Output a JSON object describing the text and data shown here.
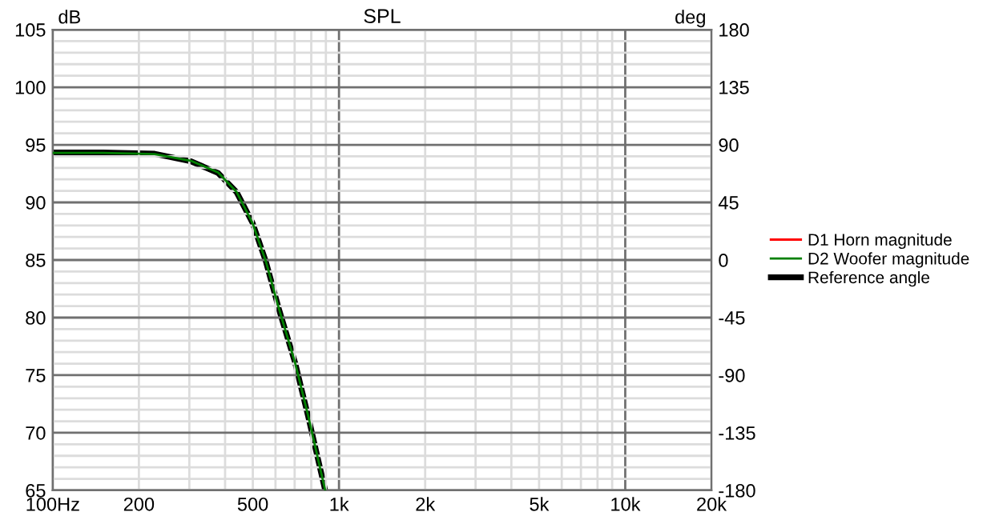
{
  "chart_data": {
    "type": "line",
    "title": "SPL",
    "ylabel": "dB",
    "y2label": "deg",
    "log": "x",
    "grid": true,
    "legend": "right",
    "line_style": "solid",
    "marker": "none",
    "xlim": [
      100,
      20000
    ],
    "ylim": [
      65,
      105
    ],
    "y2lim": [
      -180,
      180
    ],
    "xticks": [
      {
        "value": 100,
        "label": "100Hz"
      },
      {
        "value": 200,
        "label": "200"
      },
      {
        "value": 300,
        "label": null
      },
      {
        "value": 400,
        "label": null
      },
      {
        "value": 500,
        "label": "500"
      },
      {
        "value": 600,
        "label": null
      },
      {
        "value": 700,
        "label": null
      },
      {
        "value": 800,
        "label": null
      },
      {
        "value": 900,
        "label": null
      },
      {
        "value": 1000,
        "label": "1k"
      },
      {
        "value": 2000,
        "label": "2k"
      },
      {
        "value": 3000,
        "label": null
      },
      {
        "value": 4000,
        "label": null
      },
      {
        "value": 5000,
        "label": "5k"
      },
      {
        "value": 6000,
        "label": null
      },
      {
        "value": 7000,
        "label": null
      },
      {
        "value": 8000,
        "label": null
      },
      {
        "value": 9000,
        "label": null
      },
      {
        "value": 10000,
        "label": "10k"
      },
      {
        "value": 20000,
        "label": "20k"
      }
    ],
    "yticks": [
      65,
      {
        "value": 66,
        "label": null
      },
      {
        "value": 67,
        "label": null
      },
      {
        "value": 68,
        "label": null
      },
      {
        "value": 69,
        "label": null
      },
      70,
      {
        "value": 71,
        "label": null
      },
      {
        "value": 72,
        "label": null
      },
      {
        "value": 73,
        "label": null
      },
      {
        "value": 74,
        "label": null
      },
      75,
      {
        "value": 76,
        "label": null
      },
      {
        "value": 77,
        "label": null
      },
      {
        "value": 78,
        "label": null
      },
      {
        "value": 79,
        "label": null
      },
      80,
      {
        "value": 81,
        "label": null
      },
      {
        "value": 82,
        "label": null
      },
      {
        "value": 83,
        "label": null
      },
      {
        "value": 84,
        "label": null
      },
      85,
      {
        "value": 86,
        "label": null
      },
      {
        "value": 87,
        "label": null
      },
      {
        "value": 88,
        "label": null
      },
      {
        "value": 89,
        "label": null
      },
      90,
      {
        "value": 91,
        "label": null
      },
      {
        "value": 92,
        "label": null
      },
      {
        "value": 93,
        "label": null
      },
      {
        "value": 94,
        "label": null
      },
      95,
      {
        "value": 96,
        "label": null
      },
      {
        "value": 97,
        "label": null
      },
      {
        "value": 98,
        "label": null
      },
      {
        "value": 99,
        "label": null
      },
      100,
      {
        "value": 101,
        "label": null
      },
      {
        "value": 102,
        "label": null
      },
      {
        "value": 103,
        "label": null
      },
      {
        "value": 104,
        "label": null
      },
      105
    ],
    "y2ticks": [
      -180,
      -135,
      -90,
      -45,
      0,
      45,
      90,
      135,
      180
    ],
    "series": [
      {
        "name": "Reference angle",
        "color": "#000000",
        "axis": "y2",
        "x": [
          100,
          150,
          227,
          305,
          378,
          439,
          499,
          555,
          618,
          702,
          780,
          895
        ],
        "values": [
          84,
          84,
          83,
          77,
          68,
          53,
          29,
          -1,
          -39,
          -80,
          -122,
          -180
        ]
      },
      {
        "name": "D1 Horn magnitude",
        "color": "#ff0000"
      },
      {
        "name": "D2 Woofer magnitude",
        "color": "#008000",
        "x": [
          100,
          150,
          227,
          305,
          378,
          439,
          499,
          555,
          618,
          702,
          780,
          895
        ],
        "values": [
          94.3,
          94.3,
          94.2,
          93.6,
          92.6,
          90.9,
          88.2,
          84.9,
          80.7,
          76.1,
          71.5,
          65.0
        ]
      }
    ]
  }
}
